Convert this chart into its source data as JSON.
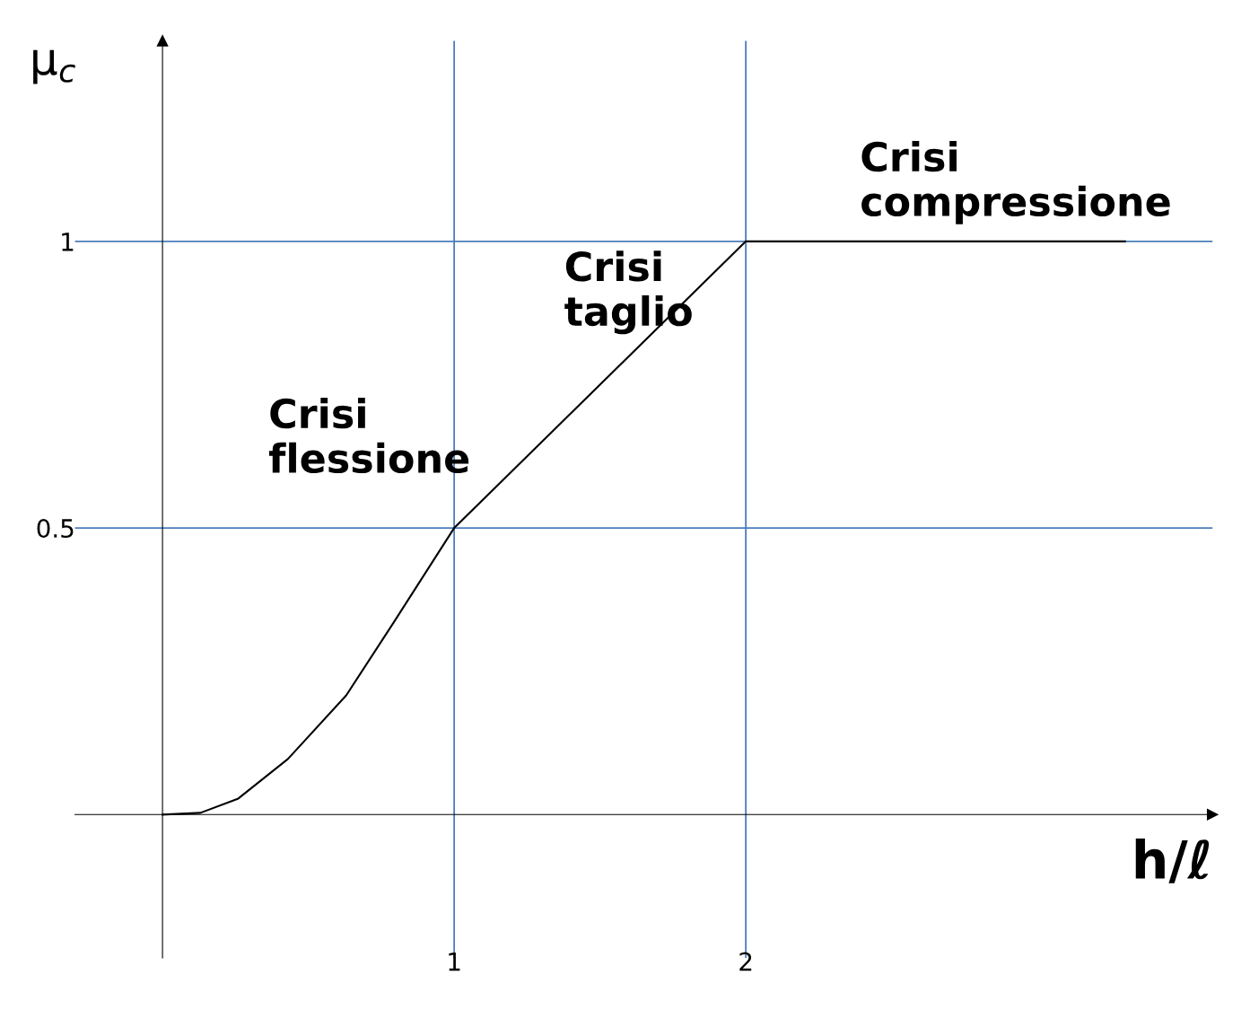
{
  "chart_data": {
    "type": "line",
    "xlabel": "h/ℓ",
    "ylabel": "μ$_{c}$",
    "x": [
      0,
      0.13,
      0.26,
      0.43,
      0.63,
      0.79,
      1,
      2,
      3.3
    ],
    "series": [
      {
        "color": "#000000",
        "values": [
          0,
          0.003,
          0.028,
          0.097,
          0.208,
          0.333,
          0.5,
          1,
          1
        ]
      }
    ],
    "xlim": [
      -0.3,
      3.6
    ],
    "ylim": [
      -0.25,
      1.35
    ],
    "xticks": [
      1,
      2
    ],
    "yticks": [
      0.5,
      1
    ],
    "ref_lines": [
      {
        "axis": "x",
        "value": 1,
        "color": "#4a7ebb"
      },
      {
        "axis": "x",
        "value": 2,
        "color": "#4a7ebb"
      },
      {
        "axis": "y",
        "value": 0.5,
        "color": "#4a7ebb"
      },
      {
        "axis": "y",
        "value": 1,
        "color": "#4a7ebb"
      }
    ],
    "annotations": [
      "Crisi\nflessione",
      "Crisi\ntaglio",
      "Crisi\ncompressione"
    ],
    "grid": false,
    "legend": false,
    "marker": "none",
    "line_style": "solid"
  }
}
